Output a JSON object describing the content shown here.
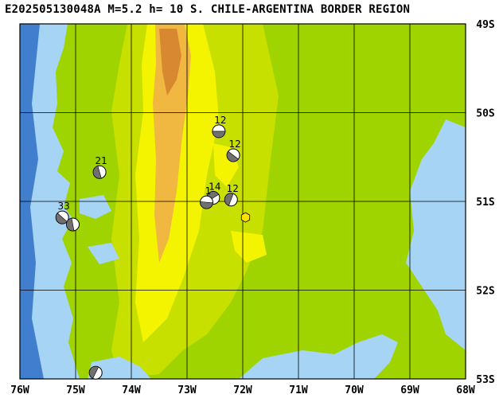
{
  "title": "E202505130048A  M=5.2  h= 10  S. CHILE-ARGENTINA BORDER REGION",
  "lon_labels": [
    "76W",
    "75W",
    "74W",
    "73W",
    "72W",
    "71W",
    "70W",
    "69W",
    "68W"
  ],
  "lat_labels": [
    "49S",
    "50S",
    "51S",
    "52S",
    "53S"
  ],
  "mechanisms": [
    {
      "label": "12",
      "lon": -72.43,
      "lat": -50.21
    },
    {
      "label": "12",
      "lon": -72.17,
      "lat": -50.48
    },
    {
      "label": "21",
      "lon": -74.57,
      "lat": -50.67
    },
    {
      "label": "12",
      "lon": -72.21,
      "lat": -50.98
    },
    {
      "label": "14",
      "lon": -72.53,
      "lat": -50.96
    },
    {
      "label": "1",
      "lon": -72.65,
      "lat": -51.01
    },
    {
      "label": "33",
      "lon": -75.24,
      "lat": -51.18
    },
    {
      "label": "",
      "lon": -75.05,
      "lat": -51.26
    },
    {
      "label": "",
      "lon": -74.64,
      "lat": -52.93
    }
  ],
  "epicenter": {
    "lon": -71.95,
    "lat": -51.18
  },
  "colors": {
    "ocean": "#a6d4f4",
    "deep_ocean": "#2f6fc6",
    "lowland": "#9fd400",
    "hill": "#c8e000",
    "upland": "#f4f400",
    "mountain": "#f0b840",
    "peak": "#d88830",
    "grid": "#000000",
    "epicenter": "#ffe000"
  }
}
